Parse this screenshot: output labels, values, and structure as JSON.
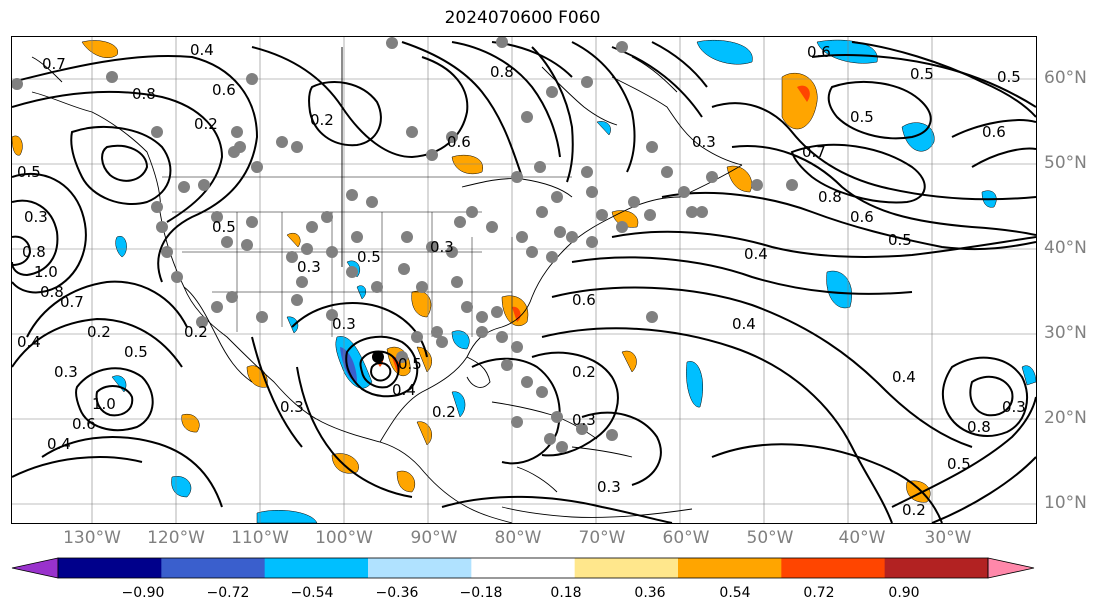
{
  "title": "2024070600 F060",
  "lon_labels": [
    "130°W",
    "120°W",
    "110°W",
    "100°W",
    "90°W",
    "80°W",
    "70°W",
    "60°W",
    "50°W",
    "40°W",
    "30°W"
  ],
  "lat_labels": [
    "60°N",
    "50°N",
    "40°N",
    "30°N",
    "20°N",
    "10°N"
  ],
  "colorbar": {
    "colors": [
      "#9932CC",
      "#00008B",
      "#3A5FCD",
      "#00BFFF",
      "#B0E2FF",
      "#FFFFFF",
      "#FFE78C",
      "#FFA500",
      "#FF4500",
      "#B22222",
      "#FF88AA"
    ],
    "tick_labels": [
      "−0.90",
      "−0.72",
      "−0.54",
      "−0.36",
      "−0.18",
      "0.18",
      "0.36",
      "0.54",
      "0.72",
      "0.90"
    ]
  },
  "contour_labels": [
    "0.4",
    "0.7",
    "0.8",
    "0.6",
    "0.2",
    "0.5",
    "0.3",
    "1.0",
    "0.8",
    "0.7",
    "0.5",
    "0.6",
    "0.2",
    "0.8",
    "0.6",
    "0.5",
    "0.7",
    "0.8",
    "0.6",
    "0.5",
    "0.4",
    "0.3",
    "0.5",
    "0.3",
    "0.2",
    "0.3",
    "0.2",
    "0.3",
    "0.4",
    "0.5",
    "0.2",
    "0.3",
    "0.5",
    "0.4",
    "0.3",
    "0.5",
    "0.6",
    "0.4",
    "0.3",
    "0.2",
    "0.4",
    "0.5",
    "0.8",
    "1.0",
    "0.6",
    "0.3",
    "0.3",
    "0.2",
    "0.5",
    "0.8",
    "0.4",
    "0.6"
  ],
  "colors": {
    "contour": "#000000",
    "station_dot": "#808080",
    "grid": "#808080"
  }
}
